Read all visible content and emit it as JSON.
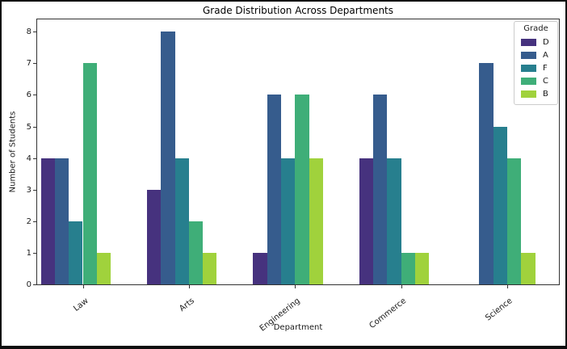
{
  "chart_data": {
    "type": "bar",
    "title": "Grade Distribution Across Departments",
    "xlabel": "Department",
    "ylabel": "Number of Students",
    "categories": [
      "Law",
      "Arts",
      "Engineering",
      "Commerce",
      "Science"
    ],
    "series": [
      {
        "name": "D",
        "color": "#46327e",
        "values": [
          4,
          3,
          1,
          4,
          0
        ]
      },
      {
        "name": "A",
        "color": "#365c8d",
        "values": [
          4,
          8,
          6,
          6,
          7
        ]
      },
      {
        "name": "F",
        "color": "#277f8e",
        "values": [
          2,
          4,
          4,
          4,
          5
        ]
      },
      {
        "name": "C",
        "color": "#3fae78",
        "values": [
          7,
          2,
          6,
          1,
          4
        ]
      },
      {
        "name": "B",
        "color": "#a0d23c",
        "values": [
          1,
          1,
          4,
          1,
          1
        ]
      }
    ],
    "legend": {
      "title": "Grade",
      "position": "upper right"
    },
    "yticks": [
      0,
      1,
      2,
      3,
      4,
      5,
      6,
      7,
      8
    ],
    "ylim": [
      0,
      8.45
    ],
    "grid": false
  }
}
